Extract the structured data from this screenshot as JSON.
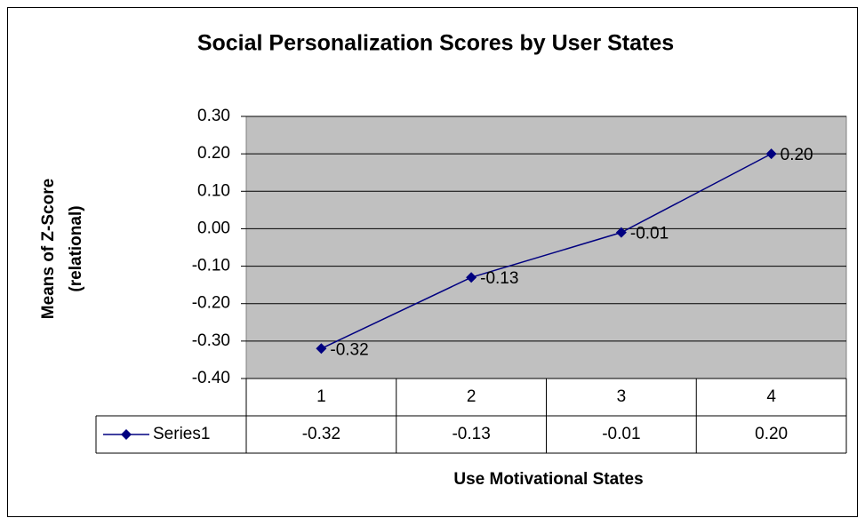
{
  "chart_data": {
    "type": "line",
    "title": "Social Personalization Scores by User States",
    "y_label": [
      "Means of Z-Score",
      "(relational)"
    ],
    "x_label": "Use Motivational States",
    "categories": [
      "1",
      "2",
      "3",
      "4"
    ],
    "series": [
      {
        "name": "Series1",
        "color": "#000080",
        "values": [
          -0.32,
          -0.13,
          -0.01,
          0.2
        ],
        "value_labels": [
          "-0.32",
          "-0.13",
          "-0.01",
          "0.20"
        ]
      }
    ],
    "ylim": [
      -0.4,
      0.3
    ],
    "yticks": [
      {
        "value": -0.4,
        "label": "-0.40"
      },
      {
        "value": -0.3,
        "label": "-0.30"
      },
      {
        "value": -0.2,
        "label": "-0.20"
      },
      {
        "value": -0.1,
        "label": "-0.10"
      },
      {
        "value": 0,
        "label": "0.00"
      },
      {
        "value": 0.1,
        "label": "0.10"
      },
      {
        "value": 0.2,
        "label": "0.20"
      },
      {
        "value": 0.3,
        "label": "0.30"
      }
    ],
    "grid": true,
    "plot_background": "#c0c0c0",
    "data_table": true
  }
}
